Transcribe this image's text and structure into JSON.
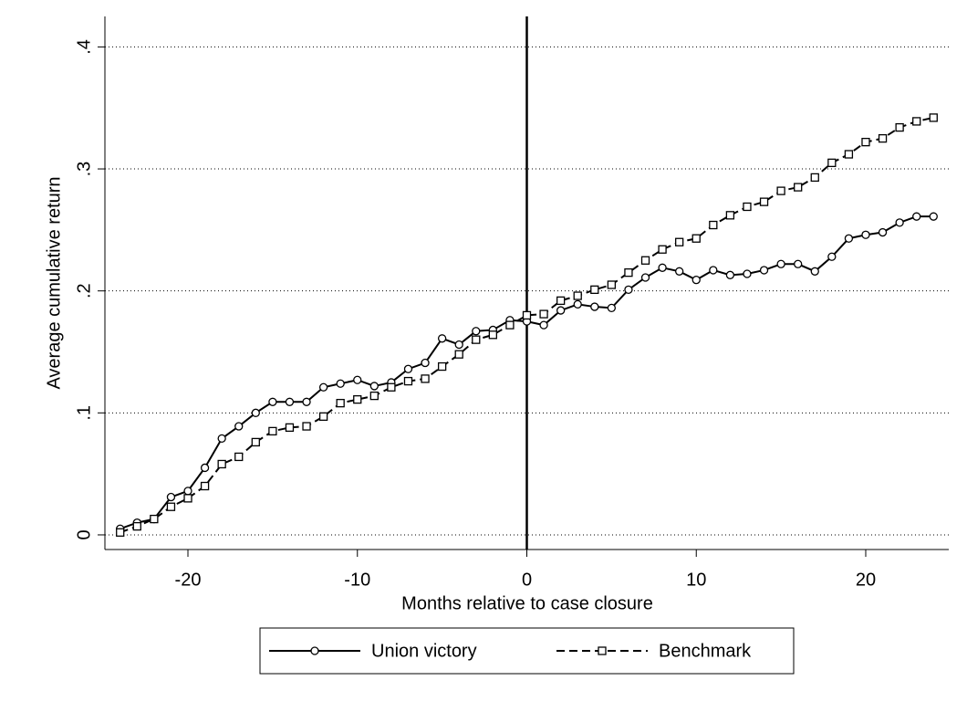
{
  "chart_data": {
    "type": "line",
    "xlabel": "Months relative to case closure",
    "ylabel": "Average cumulative return",
    "x": [
      -24,
      -23,
      -22,
      -21,
      -20,
      -19,
      -18,
      -17,
      -16,
      -15,
      -14,
      -13,
      -12,
      -11,
      -10,
      -9,
      -8,
      -7,
      -6,
      -5,
      -4,
      -3,
      -2,
      -1,
      0,
      1,
      2,
      3,
      4,
      5,
      6,
      7,
      8,
      9,
      10,
      11,
      12,
      13,
      14,
      15,
      16,
      17,
      18,
      19,
      20,
      21,
      22,
      23,
      24
    ],
    "series": [
      {
        "name": "Union victory",
        "color": "#000000",
        "marker": "circle",
        "dash": false,
        "values": [
          0.005,
          0.01,
          0.013,
          0.031,
          0.036,
          0.055,
          0.079,
          0.089,
          0.1,
          0.109,
          0.109,
          0.109,
          0.121,
          0.124,
          0.127,
          0.122,
          0.125,
          0.136,
          0.141,
          0.161,
          0.156,
          0.167,
          0.168,
          0.176,
          0.175,
          0.172,
          0.184,
          0.189,
          0.187,
          0.186,
          0.201,
          0.211,
          0.219,
          0.216,
          0.209,
          0.217,
          0.213,
          0.214,
          0.217,
          0.222,
          0.222,
          0.216,
          0.228,
          0.243,
          0.246,
          0.248,
          0.256,
          0.261,
          0.261
        ]
      },
      {
        "name": "Benchmark",
        "color": "#000000",
        "marker": "square",
        "dash": true,
        "values": [
          0.002,
          0.007,
          0.013,
          0.023,
          0.03,
          0.04,
          0.058,
          0.064,
          0.076,
          0.085,
          0.088,
          0.089,
          0.097,
          0.108,
          0.111,
          0.114,
          0.121,
          0.126,
          0.128,
          0.138,
          0.148,
          0.16,
          0.164,
          0.172,
          0.18,
          0.181,
          0.192,
          0.196,
          0.201,
          0.205,
          0.215,
          0.225,
          0.234,
          0.24,
          0.243,
          0.254,
          0.262,
          0.269,
          0.273,
          0.282,
          0.285,
          0.293,
          0.305,
          0.312,
          0.322,
          0.325,
          0.334,
          0.339,
          0.342
        ]
      }
    ],
    "xlim": [
      -24.9,
      24.9
    ],
    "ylim": [
      -0.012,
      0.425
    ],
    "xticks": [
      -20,
      -10,
      0,
      10,
      20
    ],
    "yticks": [
      0,
      {
        "value": 0.1,
        "label": ".1"
      },
      {
        "value": 0.2,
        "label": ".2"
      },
      {
        "value": 0.3,
        "label": ".3"
      },
      {
        "value": 0.4,
        "label": ".4"
      }
    ],
    "xline": 0,
    "grid": true,
    "legend": "bottom"
  }
}
